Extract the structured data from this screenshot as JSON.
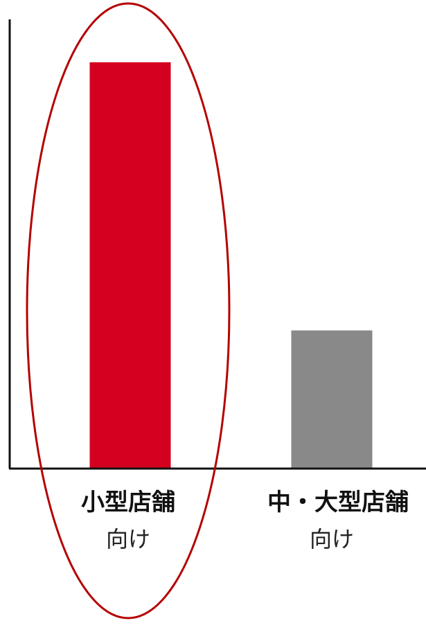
{
  "chart_data": {
    "type": "bar",
    "categories": [
      {
        "name": "小型店舗",
        "sub": "向け"
      },
      {
        "name": "中・大型店舗",
        "sub": "向け"
      }
    ],
    "values": [
      100,
      34
    ],
    "ylim": [
      0,
      100
    ],
    "title": "",
    "xlabel": "",
    "ylabel": "",
    "grid": false,
    "bar_colors": [
      "#d4001f",
      "#898989"
    ],
    "axis_color": "#111111",
    "highlight": {
      "category_index": 0,
      "shape": "ellipse",
      "color": "#b40000"
    }
  }
}
